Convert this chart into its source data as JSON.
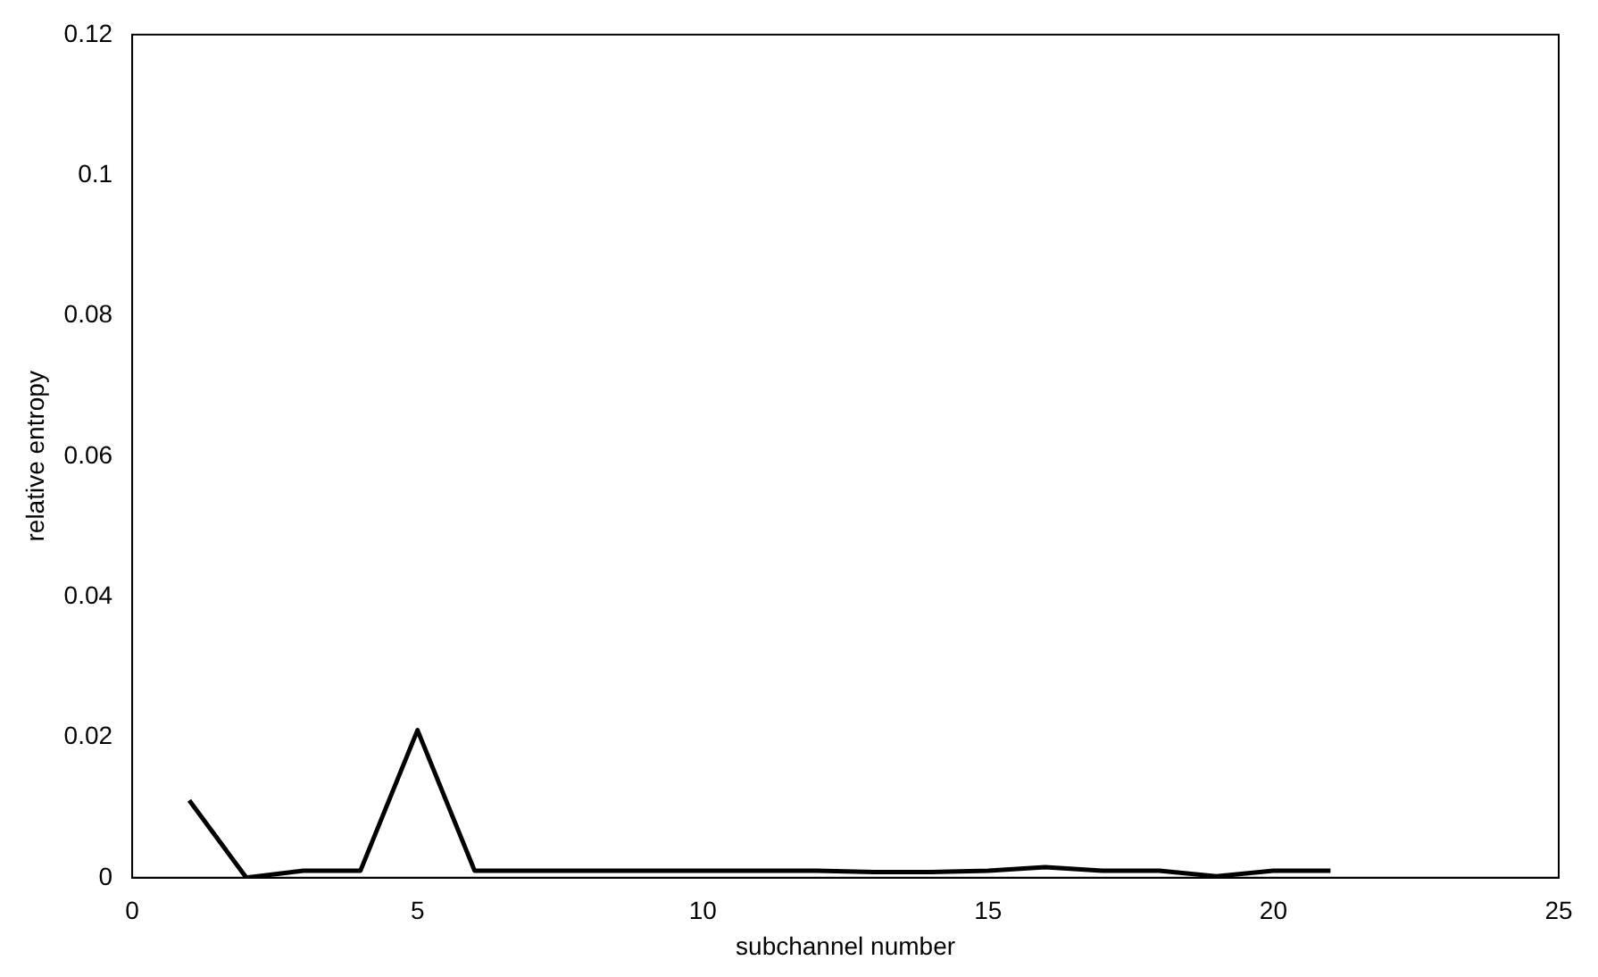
{
  "chart_data": {
    "type": "line",
    "xlabel": "subchannel number",
    "ylabel": "relative entropy",
    "x": [
      1,
      2,
      3,
      4,
      5,
      6,
      7,
      8,
      9,
      10,
      11,
      12,
      13,
      14,
      15,
      16,
      17,
      18,
      19,
      20,
      21
    ],
    "series": [
      {
        "color": "#000000",
        "values": [
          0.011,
          0,
          0.001,
          0.001,
          0.021,
          0.001,
          0.001,
          0.001,
          0.001,
          0.001,
          0.001,
          0.001,
          0.0008,
          0.0008,
          0.001,
          0.0015,
          0.001,
          0.001,
          0.0002,
          0.001,
          0.001
        ]
      }
    ],
    "xlim": [
      0,
      25
    ],
    "xticks": [
      0,
      5,
      10,
      15,
      20,
      25
    ],
    "ylim": [
      0,
      0.12
    ],
    "yticks": [
      0,
      0.02,
      0.04,
      0.06,
      0.08,
      0.1,
      0.12
    ],
    "grid": false,
    "legend": false,
    "marker": "none",
    "line_style": "solid"
  }
}
